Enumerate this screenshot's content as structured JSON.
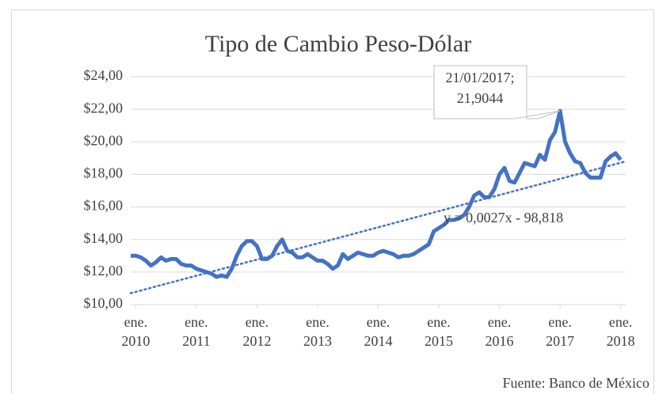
{
  "chart_data": {
    "type": "line",
    "title": "Tipo de Cambio Peso-Dólar",
    "x": [
      "2009-12",
      "2010-01",
      "2010-02",
      "2010-03",
      "2010-04",
      "2010-05",
      "2010-06",
      "2010-07",
      "2010-08",
      "2010-09",
      "2010-10",
      "2010-11",
      "2010-12",
      "2011-01",
      "2011-02",
      "2011-03",
      "2011-04",
      "2011-05",
      "2011-06",
      "2011-07",
      "2011-08",
      "2011-09",
      "2011-10",
      "2011-11",
      "2011-12",
      "2012-01",
      "2012-02",
      "2012-03",
      "2012-04",
      "2012-05",
      "2012-06",
      "2012-07",
      "2012-08",
      "2012-09",
      "2012-10",
      "2012-11",
      "2012-12",
      "2013-01",
      "2013-02",
      "2013-03",
      "2013-04",
      "2013-05",
      "2013-06",
      "2013-07",
      "2013-08",
      "2013-09",
      "2013-10",
      "2013-11",
      "2013-12",
      "2014-01",
      "2014-02",
      "2014-03",
      "2014-04",
      "2014-05",
      "2014-06",
      "2014-07",
      "2014-08",
      "2014-09",
      "2014-10",
      "2014-11",
      "2014-12",
      "2015-01",
      "2015-02",
      "2015-03",
      "2015-04",
      "2015-05",
      "2015-06",
      "2015-07",
      "2015-08",
      "2015-09",
      "2015-10",
      "2015-11",
      "2015-12",
      "2016-01",
      "2016-02",
      "2016-03",
      "2016-04",
      "2016-05",
      "2016-06",
      "2016-07",
      "2016-08",
      "2016-09",
      "2016-10",
      "2016-11",
      "2016-12",
      "2017-01",
      "2017-02",
      "2017-03",
      "2017-04",
      "2017-05",
      "2017-06",
      "2017-07",
      "2017-08",
      "2017-09",
      "2017-10",
      "2017-11",
      "2017-12",
      "2018-01"
    ],
    "series": [
      {
        "color": "#4472c4",
        "values": [
          13.0,
          13.0,
          12.9,
          12.7,
          12.4,
          12.6,
          12.9,
          12.7,
          12.8,
          12.8,
          12.5,
          12.4,
          12.4,
          12.2,
          12.1,
          12.0,
          11.9,
          11.7,
          11.8,
          11.7,
          12.2,
          13.0,
          13.6,
          13.9,
          13.9,
          13.6,
          12.8,
          12.8,
          13.0,
          13.6,
          14.0,
          13.3,
          13.2,
          12.9,
          12.9,
          13.1,
          12.9,
          12.7,
          12.7,
          12.5,
          12.2,
          12.4,
          13.1,
          12.8,
          13.0,
          13.2,
          13.1,
          13.0,
          13.0,
          13.2,
          13.3,
          13.2,
          13.1,
          12.9,
          13.0,
          13.0,
          13.1,
          13.3,
          13.5,
          13.7,
          14.5,
          14.7,
          14.9,
          15.2,
          15.2,
          15.3,
          15.5,
          16.0,
          16.7,
          16.9,
          16.6,
          16.6,
          17.1,
          18.0,
          18.4,
          17.6,
          17.5,
          18.1,
          18.7,
          18.6,
          18.5,
          19.2,
          18.9,
          20.1,
          20.6,
          21.9,
          20.0,
          19.3,
          18.8,
          18.7,
          18.1,
          17.8,
          17.8,
          17.8,
          18.8,
          19.1,
          19.3,
          18.9
        ]
      }
    ],
    "trendline": {
      "label": "y = 0,0027x - 98,818",
      "color": "#4472c4",
      "x": [
        "2009-12",
        "2018-02"
      ],
      "values": [
        10.7,
        18.8
      ]
    },
    "annotation": {
      "label": "21/01/2017; 21,9044",
      "x": "2017-01",
      "value": 21.9044
    },
    "xlim": [
      "2009-12",
      "2018-02"
    ],
    "xticks": [
      {
        "value": "2010-01",
        "label": "ene. 2010"
      },
      {
        "value": "2011-01",
        "label": "ene. 2011"
      },
      {
        "value": "2012-01",
        "label": "ene. 2012"
      },
      {
        "value": "2013-01",
        "label": "ene. 2013"
      },
      {
        "value": "2014-01",
        "label": "ene. 2014"
      },
      {
        "value": "2015-01",
        "label": "ene. 2015"
      },
      {
        "value": "2016-01",
        "label": "ene. 2016"
      },
      {
        "value": "2017-01",
        "label": "ene. 2017"
      },
      {
        "value": "2018-01",
        "label": "ene. 2018"
      }
    ],
    "ylim": [
      10,
      24
    ],
    "yticks": [
      {
        "value": 10,
        "label": "$10,00"
      },
      {
        "value": 12,
        "label": "$12,00"
      },
      {
        "value": 14,
        "label": "$14,00"
      },
      {
        "value": 16,
        "label": "$16,00"
      },
      {
        "value": 18,
        "label": "$18,00"
      },
      {
        "value": 20,
        "label": "$20,00"
      },
      {
        "value": 22,
        "label": "$22,00"
      },
      {
        "value": 24,
        "label": "$24,00"
      }
    ],
    "grid": true,
    "source": "Fuente: Banco de México"
  }
}
